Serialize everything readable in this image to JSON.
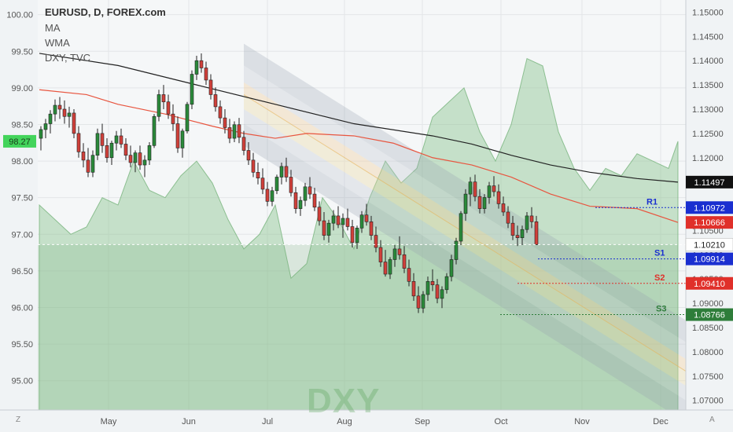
{
  "header": {
    "symbol_line": "EURUSD, D, FOREX.com",
    "ind1": "MA",
    "ind2": "WMA",
    "ind3": "DXY, TVC"
  },
  "watermark": "DXY",
  "corner_left": "Z",
  "corner_right": "A",
  "chart_data": {
    "type": "candlestick",
    "left_axis": {
      "range": [
        94.6,
        100.2
      ],
      "ticks": [
        "100.00",
        "99.50",
        "99.00",
        "98.50",
        "98.00",
        "97.50",
        "97.00",
        "96.50",
        "96.00",
        "95.50",
        "95.00"
      ]
    },
    "right_axis": {
      "range": [
        1.068,
        1.1525
      ],
      "ticks": [
        "1.15000",
        "1.14500",
        "1.14000",
        "1.13500",
        "1.13000",
        "1.12500",
        "1.12000",
        "1.11500",
        "1.11000",
        "1.10500",
        "1.10000",
        "1.09500",
        "1.09000",
        "1.08500",
        "1.08000",
        "1.07500",
        "1.07000"
      ]
    },
    "x_axis": {
      "labels": [
        "May",
        "Jun",
        "Jul",
        "Aug",
        "Sep",
        "Oct",
        "Nov",
        "Dec"
      ]
    },
    "left_badge": {
      "value": "98.27",
      "color": "#43d45b"
    },
    "right_badges": [
      {
        "value": "1.11497",
        "bg": "#111111",
        "fg": "#ffffff"
      },
      {
        "value": "1.10972",
        "bg": "#1a2fd0",
        "fg": "#ffffff"
      },
      {
        "value": "1.10666",
        "bg": "#e0302a",
        "fg": "#ffffff"
      },
      {
        "value": "1.10210",
        "bg": "#ffffff",
        "fg": "#222222"
      },
      {
        "value": "1.09914",
        "bg": "#1a2fd0",
        "fg": "#ffffff"
      },
      {
        "value": "1.09410",
        "bg": "#e0302a",
        "fg": "#ffffff"
      },
      {
        "value": "1.08766",
        "bg": "#2e7d3a",
        "fg": "#ffffff"
      }
    ],
    "levels": [
      {
        "name": "R1",
        "value": 1.10972,
        "color": "#1a2fd0"
      },
      {
        "name": "S1",
        "value": 1.09914,
        "color": "#1a2fd0"
      },
      {
        "name": "S2",
        "value": 1.0941,
        "color": "#e0302a"
      },
      {
        "name": "S3",
        "value": 1.08766,
        "color": "#2e7d3a"
      }
    ],
    "current_price": 1.1021,
    "series": [
      {
        "name": "MA",
        "color": "#222222",
        "kind": "line",
        "points": [
          [
            0,
            1.1415
          ],
          [
            100,
            1.139
          ],
          [
            200,
            1.135
          ],
          [
            300,
            1.131
          ],
          [
            400,
            1.127
          ],
          [
            500,
            1.1245
          ],
          [
            550,
            1.1228
          ],
          [
            600,
            1.1205
          ],
          [
            650,
            1.1185
          ],
          [
            700,
            1.117
          ],
          [
            760,
            1.1157
          ],
          [
            812,
            1.11497
          ]
        ]
      },
      {
        "name": "WMA",
        "color": "#e8553f",
        "kind": "line",
        "points": [
          [
            0,
            1.134
          ],
          [
            60,
            1.133
          ],
          [
            100,
            1.131
          ],
          [
            160,
            1.129
          ],
          [
            220,
            1.1265
          ],
          [
            260,
            1.125
          ],
          [
            300,
            1.124
          ],
          [
            340,
            1.125
          ],
          [
            400,
            1.1245
          ],
          [
            450,
            1.123
          ],
          [
            500,
            1.12
          ],
          [
            550,
            1.1185
          ],
          [
            600,
            1.116
          ],
          [
            650,
            1.1125
          ],
          [
            700,
            1.11
          ],
          [
            760,
            1.1095
          ],
          [
            812,
            1.10666
          ]
        ]
      },
      {
        "name": "DXY, TVC",
        "color": "#9ccaa0",
        "kind": "area",
        "axis": "left",
        "points": [
          [
            0,
            97.4
          ],
          [
            20,
            97.2
          ],
          [
            40,
            97.0
          ],
          [
            60,
            97.1
          ],
          [
            80,
            97.5
          ],
          [
            100,
            97.4
          ],
          [
            120,
            98.0
          ],
          [
            140,
            97.6
          ],
          [
            160,
            97.5
          ],
          [
            180,
            97.8
          ],
          [
            200,
            98.0
          ],
          [
            220,
            97.7
          ],
          [
            240,
            97.2
          ],
          [
            260,
            96.8
          ],
          [
            280,
            97.0
          ],
          [
            300,
            97.4
          ],
          [
            320,
            96.4
          ],
          [
            340,
            96.6
          ],
          [
            360,
            97.5
          ],
          [
            380,
            97.2
          ],
          [
            400,
            96.8
          ],
          [
            420,
            97.5
          ],
          [
            440,
            98.0
          ],
          [
            460,
            97.7
          ],
          [
            480,
            97.9
          ],
          [
            500,
            98.6
          ],
          [
            520,
            98.8
          ],
          [
            540,
            99.0
          ],
          [
            560,
            98.4
          ],
          [
            580,
            98.0
          ],
          [
            600,
            98.5
          ],
          [
            620,
            99.4
          ],
          [
            640,
            99.3
          ],
          [
            660,
            98.4
          ],
          [
            680,
            97.9
          ],
          [
            700,
            97.6
          ],
          [
            720,
            97.9
          ],
          [
            740,
            97.8
          ],
          [
            760,
            98.1
          ],
          [
            780,
            98.0
          ],
          [
            800,
            97.9
          ],
          [
            812,
            98.27
          ]
        ]
      }
    ],
    "candles": [
      [
        0,
        1.124,
        1.1265,
        1.1215,
        1.1258
      ],
      [
        6,
        1.1258,
        1.128,
        1.124,
        1.127
      ],
      [
        12,
        1.127,
        1.1298,
        1.125,
        1.129
      ],
      [
        18,
        1.129,
        1.132,
        1.1275,
        1.1308
      ],
      [
        24,
        1.1308,
        1.1325,
        1.128,
        1.13
      ],
      [
        30,
        1.13,
        1.1318,
        1.127,
        1.1285
      ],
      [
        36,
        1.1285,
        1.1305,
        1.1262,
        1.1292
      ],
      [
        42,
        1.1292,
        1.13,
        1.124,
        1.125
      ],
      [
        48,
        1.125,
        1.1265,
        1.12,
        1.1212
      ],
      [
        54,
        1.1212,
        1.123,
        1.118,
        1.1195
      ],
      [
        60,
        1.1195,
        1.122,
        1.116,
        1.117
      ],
      [
        66,
        1.117,
        1.1215,
        1.116,
        1.1205
      ],
      [
        72,
        1.1205,
        1.126,
        1.1195,
        1.125
      ],
      [
        78,
        1.125,
        1.127,
        1.121,
        1.1225
      ],
      [
        84,
        1.1225,
        1.124,
        1.119,
        1.12
      ],
      [
        90,
        1.12,
        1.1235,
        1.1185,
        1.123
      ],
      [
        96,
        1.123,
        1.1255,
        1.1215,
        1.1245
      ],
      [
        102,
        1.1245,
        1.126,
        1.122,
        1.1228
      ],
      [
        108,
        1.1228,
        1.124,
        1.1195,
        1.1205
      ],
      [
        114,
        1.1205,
        1.1225,
        1.118,
        1.119
      ],
      [
        120,
        1.119,
        1.1215,
        1.117,
        1.121
      ],
      [
        126,
        1.121,
        1.1225,
        1.1175,
        1.1185
      ],
      [
        132,
        1.1185,
        1.1205,
        1.116,
        1.1195
      ],
      [
        138,
        1.1195,
        1.1232,
        1.1185,
        1.1225
      ],
      [
        144,
        1.1225,
        1.129,
        1.122,
        1.1285
      ],
      [
        150,
        1.1285,
        1.134,
        1.1275,
        1.133
      ],
      [
        156,
        1.133,
        1.135,
        1.13,
        1.1315
      ],
      [
        162,
        1.1315,
        1.133,
        1.128,
        1.129
      ],
      [
        168,
        1.129,
        1.131,
        1.1255,
        1.127
      ],
      [
        174,
        1.127,
        1.1285,
        1.121,
        1.122
      ],
      [
        180,
        1.122,
        1.126,
        1.12,
        1.1255
      ],
      [
        186,
        1.1255,
        1.1315,
        1.125,
        1.131
      ],
      [
        192,
        1.131,
        1.138,
        1.13,
        1.1372
      ],
      [
        198,
        1.1372,
        1.141,
        1.136,
        1.14
      ],
      [
        204,
        1.14,
        1.1415,
        1.1375,
        1.1385
      ],
      [
        210,
        1.1385,
        1.1398,
        1.135,
        1.136
      ],
      [
        216,
        1.136,
        1.1372,
        1.132,
        1.133
      ],
      [
        222,
        1.133,
        1.1345,
        1.1295,
        1.1305
      ],
      [
        228,
        1.1305,
        1.1318,
        1.127,
        1.1282
      ],
      [
        234,
        1.1282,
        1.13,
        1.125,
        1.1262
      ],
      [
        240,
        1.1262,
        1.128,
        1.123,
        1.124
      ],
      [
        246,
        1.124,
        1.1275,
        1.1232,
        1.1268
      ],
      [
        252,
        1.1268,
        1.1282,
        1.123,
        1.1242
      ],
      [
        258,
        1.1242,
        1.1255,
        1.1205,
        1.1215
      ],
      [
        264,
        1.1215,
        1.1232,
        1.1185,
        1.1195
      ],
      [
        270,
        1.1195,
        1.121,
        1.116,
        1.117
      ],
      [
        276,
        1.117,
        1.119,
        1.1145,
        1.1158
      ],
      [
        282,
        1.1158,
        1.1178,
        1.1125,
        1.1135
      ],
      [
        288,
        1.1135,
        1.115,
        1.11,
        1.111
      ],
      [
        294,
        1.111,
        1.114,
        1.11,
        1.1132
      ],
      [
        300,
        1.1132,
        1.1165,
        1.1125,
        1.116
      ],
      [
        306,
        1.116,
        1.119,
        1.1145,
        1.1182
      ],
      [
        312,
        1.1182,
        1.12,
        1.115,
        1.116
      ],
      [
        318,
        1.116,
        1.1175,
        1.112,
        1.1128
      ],
      [
        324,
        1.1128,
        1.114,
        1.1085,
        1.1095
      ],
      [
        330,
        1.1095,
        1.112,
        1.108,
        1.1112
      ],
      [
        336,
        1.1112,
        1.1148,
        1.11,
        1.114
      ],
      [
        342,
        1.114,
        1.116,
        1.1115,
        1.1125
      ],
      [
        348,
        1.1125,
        1.1138,
        1.109,
        1.1098
      ],
      [
        354,
        1.1098,
        1.111,
        1.106,
        1.107
      ],
      [
        360,
        1.107,
        1.1088,
        1.103,
        1.104
      ],
      [
        366,
        1.104,
        1.1072,
        1.1025,
        1.1065
      ],
      [
        372,
        1.1065,
        1.1092,
        1.105,
        1.108
      ],
      [
        378,
        1.108,
        1.11,
        1.1055,
        1.1062
      ],
      [
        384,
        1.1062,
        1.1085,
        1.1035,
        1.1075
      ],
      [
        390,
        1.1075,
        1.1095,
        1.105,
        1.1058
      ],
      [
        396,
        1.1058,
        1.1072,
        1.1015,
        1.1025
      ],
      [
        402,
        1.1025,
        1.106,
        1.1012,
        1.1055
      ],
      [
        408,
        1.1055,
        1.109,
        1.1045,
        1.1082
      ],
      [
        414,
        1.1082,
        1.1105,
        1.106,
        1.1068
      ],
      [
        420,
        1.1068,
        1.108,
        1.103,
        1.104
      ],
      [
        426,
        1.104,
        1.1058,
        1.1005,
        1.1015
      ],
      [
        432,
        1.1015,
        1.103,
        1.0975,
        1.0985
      ],
      [
        438,
        1.0985,
        1.101,
        1.0955,
        1.096
      ],
      [
        444,
        1.096,
        1.0995,
        1.095,
        1.099
      ],
      [
        450,
        1.099,
        1.102,
        1.0975,
        1.1012
      ],
      [
        456,
        1.1012,
        1.1038,
        1.099,
        1.1
      ],
      [
        462,
        1.1,
        1.1018,
        1.0962,
        1.0972
      ],
      [
        468,
        1.0972,
        1.099,
        1.0935,
        1.0945
      ],
      [
        474,
        1.0945,
        1.0962,
        1.0905,
        1.0915
      ],
      [
        480,
        1.0915,
        1.0935,
        1.088,
        1.089
      ],
      [
        486,
        1.089,
        1.0925,
        1.088,
        1.0918
      ],
      [
        492,
        1.0918,
        1.0955,
        1.0905,
        1.0945
      ],
      [
        498,
        1.0945,
        1.097,
        1.0925,
        1.0938
      ],
      [
        504,
        1.0938,
        1.095,
        1.09,
        1.091
      ],
      [
        510,
        1.091,
        1.0935,
        1.089,
        1.0928
      ],
      [
        516,
        1.0928,
        1.0962,
        1.092,
        1.0955
      ],
      [
        522,
        1.0955,
        1.1,
        1.0945,
        1.099
      ],
      [
        528,
        1.099,
        1.1035,
        1.098,
        1.1028
      ],
      [
        534,
        1.1028,
        1.109,
        1.102,
        1.1085
      ],
      [
        540,
        1.1085,
        1.1135,
        1.107,
        1.1125
      ],
      [
        546,
        1.1125,
        1.116,
        1.11,
        1.115
      ],
      [
        552,
        1.115,
        1.1165,
        1.111,
        1.112
      ],
      [
        558,
        1.112,
        1.1135,
        1.1085,
        1.1095
      ],
      [
        564,
        1.1095,
        1.1125,
        1.1085,
        1.1118
      ],
      [
        570,
        1.1118,
        1.115,
        1.1105,
        1.1142
      ],
      [
        576,
        1.1142,
        1.1162,
        1.112,
        1.113
      ],
      [
        582,
        1.113,
        1.1145,
        1.1095,
        1.1105
      ],
      [
        588,
        1.1105,
        1.112,
        1.108,
        1.1088
      ],
      [
        594,
        1.1088,
        1.11,
        1.1055,
        1.1065
      ],
      [
        600,
        1.1065,
        1.108,
        1.103,
        1.104
      ],
      [
        606,
        1.104,
        1.106,
        1.1018,
        1.1035
      ],
      [
        612,
        1.1035,
        1.106,
        1.102,
        1.1052
      ],
      [
        618,
        1.1052,
        1.1088,
        1.1045,
        1.108
      ],
      [
        624,
        1.108,
        1.1098,
        1.1055,
        1.1068
      ],
      [
        630,
        1.1068,
        1.108,
        1.102,
        1.1021
      ]
    ]
  }
}
